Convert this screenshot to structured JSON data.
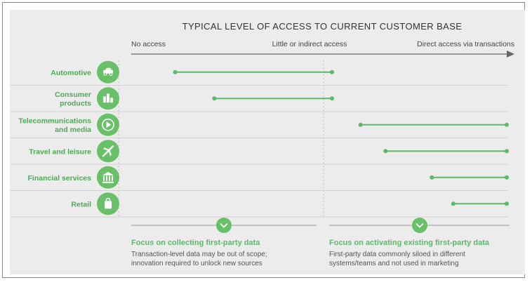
{
  "chart_data": {
    "type": "range",
    "title": "TYPICAL LEVEL OF ACCESS TO CURRENT CUSTOMER BASE",
    "axis": {
      "min": 0,
      "max": 1,
      "labels": [
        "No access",
        "Little or indirect access",
        "Direct access via transactions"
      ]
    },
    "categories": [
      {
        "label": [
          "Automotive"
        ],
        "icon": "car-icon",
        "range": [
          0.07,
          0.51
        ]
      },
      {
        "label": [
          "Consumer",
          "products"
        ],
        "icon": "bottles-icon",
        "range": [
          0.18,
          0.51
        ]
      },
      {
        "label": [
          "Telecommunications",
          "and media"
        ],
        "icon": "play-icon",
        "range": [
          0.59,
          1.0
        ]
      },
      {
        "label": [
          "Travel and leisure"
        ],
        "icon": "airplane-icon",
        "range": [
          0.66,
          1.0
        ]
      },
      {
        "label": [
          "Financial services"
        ],
        "icon": "bank-icon",
        "range": [
          0.79,
          1.0
        ]
      },
      {
        "label": [
          "Retail"
        ],
        "icon": "shopping-bag-icon",
        "range": [
          0.85,
          1.0
        ]
      }
    ],
    "focus": [
      {
        "title": "Focus on collecting first-party data",
        "lines": [
          "Transaction-level data may be out of scope;",
          "innovation required to unlock new sources"
        ]
      },
      {
        "title": "Focus on activating existing first-party data",
        "lines": [
          "First-party data commonly siloed in different",
          "systems/teams and not used in marketing"
        ]
      }
    ]
  },
  "colors": {
    "accent": "#5cb86a",
    "label": "#4fa85a",
    "icon_bg": "#6abf69",
    "text": "#333333",
    "muted": "#555555",
    "grid": "#d2d2d2",
    "axis": "#666666"
  }
}
